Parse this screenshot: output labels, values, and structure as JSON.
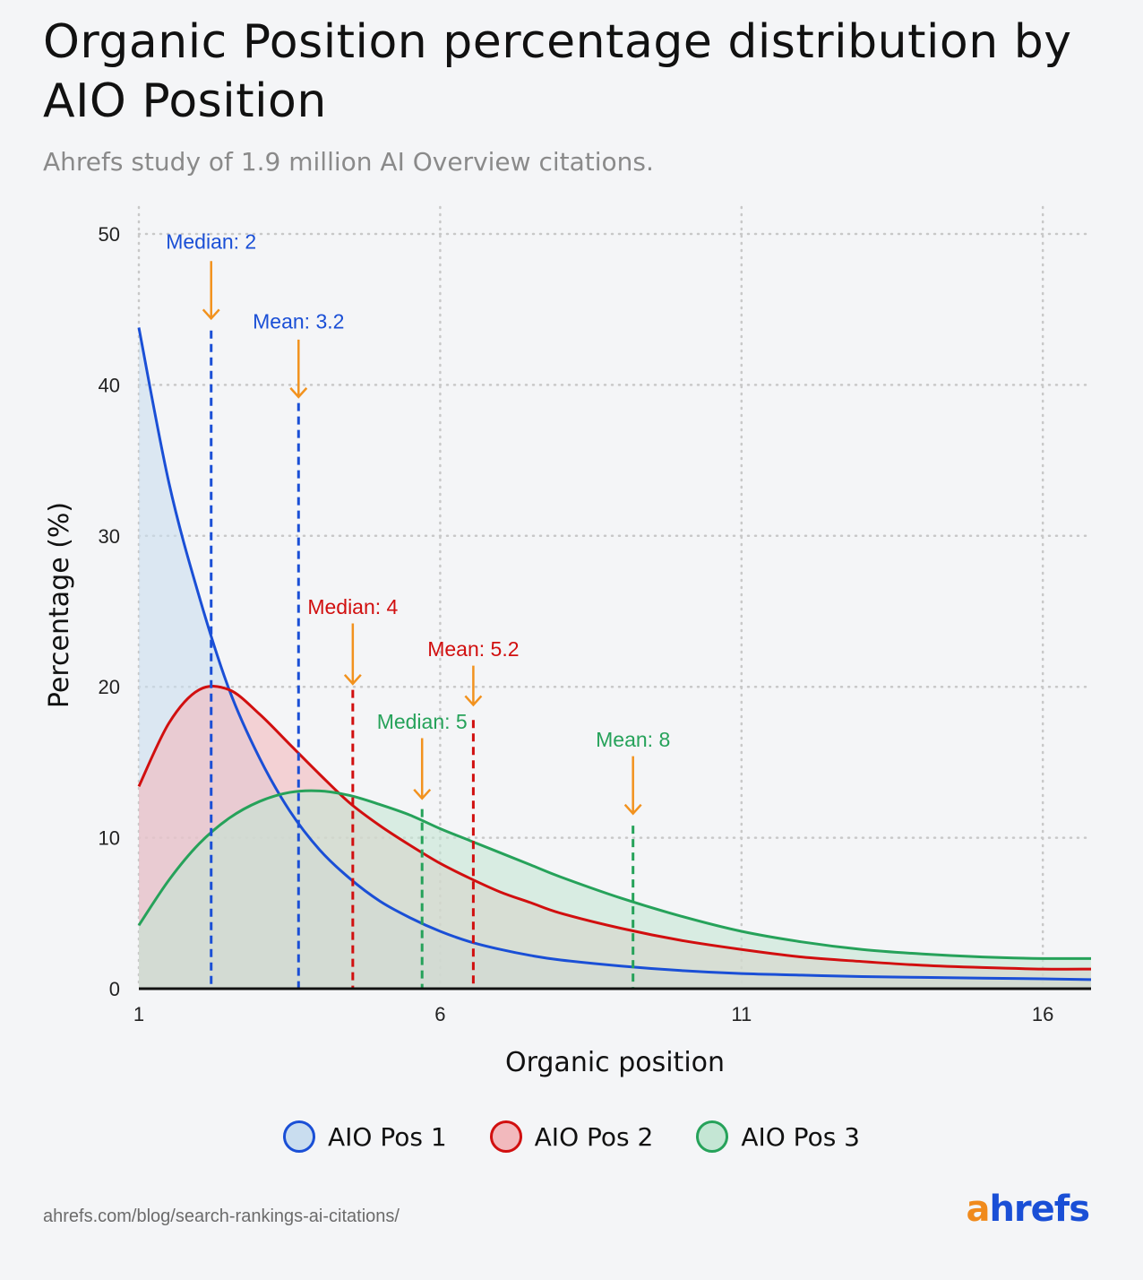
{
  "title": "Organic Position percentage distribution by AIO Position",
  "subtitle": "Ahrefs study of 1.9 million AI Overview citations.",
  "source": "ahrefs.com/blog/search-rankings-ai-citations/",
  "logo": {
    "a": "a",
    "rest": "hrefs"
  },
  "colors": {
    "pos1": "#1a4fd6",
    "pos1_fill": "#c9ddef",
    "pos2": "#d10f0f",
    "pos2_fill": "#f2b9bd",
    "pos3": "#26a25a",
    "pos3_fill": "#c4e6d4",
    "arrow": "#f2921e",
    "grid": "#c8c8c8",
    "axis": "#111111"
  },
  "legend": [
    {
      "label": "AIO Pos 1",
      "color": "#1a4fd6",
      "fill": "#c9ddef"
    },
    {
      "label": "AIO Pos 2",
      "color": "#d10f0f",
      "fill": "#f2b9bd"
    },
    {
      "label": "AIO Pos 3",
      "color": "#26a25a",
      "fill": "#c4e6d4"
    }
  ],
  "chart_data": {
    "type": "area",
    "title": "Organic Position percentage distribution by AIO Position",
    "xlabel": "Organic position",
    "ylabel": "Percentage (%)",
    "xlim": [
      1,
      16.8
    ],
    "ylim": [
      0,
      50
    ],
    "xticks": [
      1,
      6,
      11,
      16
    ],
    "yticks": [
      0,
      10,
      20,
      30,
      40,
      50
    ],
    "grid": true,
    "x": [
      1,
      1.5,
      2,
      2.5,
      3,
      3.5,
      4,
      4.5,
      5,
      5.5,
      6,
      6.5,
      7,
      7.5,
      8,
      9,
      10,
      11,
      12,
      13,
      14,
      15,
      16,
      16.8
    ],
    "series": [
      {
        "name": "AIO Pos 1",
        "values": [
          43.8,
          33.5,
          26.0,
          19.8,
          15.3,
          11.8,
          9.2,
          7.3,
          5.8,
          4.7,
          3.8,
          3.1,
          2.6,
          2.2,
          1.9,
          1.5,
          1.2,
          1.0,
          0.9,
          0.8,
          0.75,
          0.7,
          0.65,
          0.6
        ]
      },
      {
        "name": "AIO Pos 2",
        "values": [
          13.4,
          17.6,
          19.8,
          19.8,
          18.2,
          16.2,
          14.2,
          12.3,
          10.8,
          9.5,
          8.3,
          7.3,
          6.4,
          5.7,
          5.0,
          4.0,
          3.2,
          2.6,
          2.1,
          1.8,
          1.55,
          1.4,
          1.3,
          1.3
        ]
      },
      {
        "name": "AIO Pos 3",
        "values": [
          4.2,
          7.2,
          9.6,
          11.3,
          12.4,
          13.0,
          13.1,
          12.8,
          12.2,
          11.5,
          10.6,
          9.8,
          9.0,
          8.2,
          7.4,
          6.0,
          4.8,
          3.8,
          3.1,
          2.6,
          2.3,
          2.1,
          2.0,
          2.0
        ]
      }
    ],
    "annotations": [
      {
        "label": "Median: 2",
        "x": 2.2,
        "text_y": 49.5,
        "arrow_top": 48.2,
        "arrow_tip": 44.4,
        "line_top": 43.6,
        "series": "AIO Pos 1"
      },
      {
        "label": "Mean: 3.2",
        "x": 3.65,
        "text_y": 44.2,
        "arrow_top": 43.0,
        "arrow_tip": 39.2,
        "line_top": 38.8,
        "series": "AIO Pos 1"
      },
      {
        "label": "Median: 4",
        "x": 4.55,
        "text_y": 25.3,
        "arrow_top": 24.2,
        "arrow_tip": 20.2,
        "line_top": 19.8,
        "series": "AIO Pos 2"
      },
      {
        "label": "Mean: 5.2",
        "x": 6.55,
        "text_y": 22.5,
        "arrow_top": 21.4,
        "arrow_tip": 18.8,
        "line_top": 17.8,
        "series": "AIO Pos 2"
      },
      {
        "label": "Median: 5",
        "x": 5.7,
        "text_y": 17.7,
        "arrow_top": 16.6,
        "arrow_tip": 12.6,
        "line_top": 11.9,
        "series": "AIO Pos 3"
      },
      {
        "label": "Mean: 8",
        "x": 9.2,
        "text_y": 16.5,
        "arrow_top": 15.4,
        "arrow_tip": 11.6,
        "line_top": 10.8,
        "series": "AIO Pos 3"
      }
    ]
  }
}
